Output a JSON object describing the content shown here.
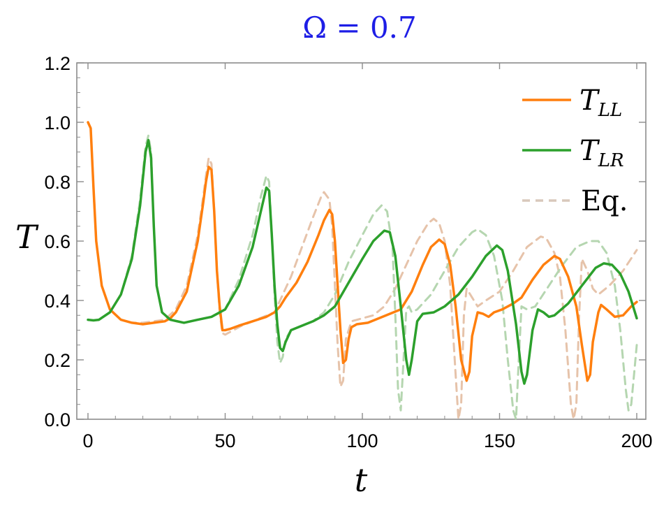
{
  "chart_data": {
    "type": "line",
    "title": "Ω = 0.7",
    "xlabel": "t",
    "ylabel": "T",
    "xlim": [
      0,
      200
    ],
    "ylim": [
      0,
      1.2
    ],
    "x_ticks": [
      "0",
      "50",
      "100",
      "150",
      "200"
    ],
    "y_ticks": [
      "0.0",
      "0.2",
      "0.4",
      "0.6",
      "0.8",
      "1.0",
      "1.2"
    ],
    "grid": false,
    "legend_position": "top-right",
    "series": [
      {
        "name": "T_LL",
        "legend_main": "T",
        "legend_sub": "LL",
        "color": "#ff7f0e",
        "style": "solid",
        "points": [
          [
            0,
            1.0
          ],
          [
            1,
            0.98
          ],
          [
            2,
            0.78
          ],
          [
            3,
            0.6
          ],
          [
            5,
            0.45
          ],
          [
            8,
            0.37
          ],
          [
            12,
            0.335
          ],
          [
            16,
            0.325
          ],
          [
            20,
            0.32
          ],
          [
            24,
            0.325
          ],
          [
            28,
            0.33
          ],
          [
            30,
            0.34
          ],
          [
            32,
            0.36
          ],
          [
            36,
            0.43
          ],
          [
            40,
            0.6
          ],
          [
            42,
            0.73
          ],
          [
            43,
            0.8
          ],
          [
            44,
            0.85
          ],
          [
            45,
            0.84
          ],
          [
            46,
            0.7
          ],
          [
            47,
            0.5
          ],
          [
            48,
            0.38
          ],
          [
            49,
            0.3
          ],
          [
            50,
            0.3
          ],
          [
            52,
            0.305
          ],
          [
            55,
            0.315
          ],
          [
            60,
            0.33
          ],
          [
            65,
            0.345
          ],
          [
            68,
            0.36
          ],
          [
            70,
            0.38
          ],
          [
            72,
            0.41
          ],
          [
            76,
            0.46
          ],
          [
            80,
            0.53
          ],
          [
            84,
            0.62
          ],
          [
            86,
            0.67
          ],
          [
            88,
            0.705
          ],
          [
            89,
            0.69
          ],
          [
            90,
            0.6
          ],
          [
            91,
            0.45
          ],
          [
            92,
            0.3
          ],
          [
            93,
            0.19
          ],
          [
            94,
            0.2
          ],
          [
            95,
            0.27
          ],
          [
            96,
            0.31
          ],
          [
            98,
            0.32
          ],
          [
            102,
            0.325
          ],
          [
            106,
            0.34
          ],
          [
            110,
            0.355
          ],
          [
            114,
            0.37
          ],
          [
            118,
            0.43
          ],
          [
            122,
            0.52
          ],
          [
            125,
            0.58
          ],
          [
            128,
            0.605
          ],
          [
            130,
            0.59
          ],
          [
            132,
            0.52
          ],
          [
            134,
            0.38
          ],
          [
            136,
            0.2
          ],
          [
            138,
            0.13
          ],
          [
            139,
            0.16
          ],
          [
            140,
            0.28
          ],
          [
            142,
            0.36
          ],
          [
            144,
            0.355
          ],
          [
            146,
            0.345
          ],
          [
            148,
            0.36
          ],
          [
            151,
            0.37
          ],
          [
            155,
            0.39
          ],
          [
            158,
            0.41
          ],
          [
            162,
            0.47
          ],
          [
            166,
            0.52
          ],
          [
            170,
            0.55
          ],
          [
            172,
            0.54
          ],
          [
            175,
            0.48
          ],
          [
            178,
            0.38
          ],
          [
            180,
            0.25
          ],
          [
            182,
            0.13
          ],
          [
            183,
            0.15
          ],
          [
            184,
            0.26
          ],
          [
            186,
            0.36
          ],
          [
            187,
            0.385
          ],
          [
            189,
            0.37
          ],
          [
            192,
            0.345
          ],
          [
            195,
            0.35
          ],
          [
            198,
            0.38
          ],
          [
            200,
            0.395
          ]
        ]
      },
      {
        "name": "T_LR",
        "legend_main": "T",
        "legend_sub": "LR",
        "color": "#2ca02c",
        "style": "solid",
        "points": [
          [
            0,
            0.335
          ],
          [
            2,
            0.333
          ],
          [
            4,
            0.335
          ],
          [
            8,
            0.36
          ],
          [
            12,
            0.42
          ],
          [
            16,
            0.54
          ],
          [
            19,
            0.72
          ],
          [
            21,
            0.9
          ],
          [
            22,
            0.94
          ],
          [
            23,
            0.88
          ],
          [
            24,
            0.65
          ],
          [
            25,
            0.45
          ],
          [
            27,
            0.36
          ],
          [
            30,
            0.335
          ],
          [
            35,
            0.325
          ],
          [
            40,
            0.335
          ],
          [
            45,
            0.345
          ],
          [
            50,
            0.37
          ],
          [
            55,
            0.45
          ],
          [
            60,
            0.58
          ],
          [
            63,
            0.7
          ],
          [
            65,
            0.78
          ],
          [
            66,
            0.77
          ],
          [
            67,
            0.62
          ],
          [
            68,
            0.45
          ],
          [
            69,
            0.32
          ],
          [
            70,
            0.24
          ],
          [
            71,
            0.23
          ],
          [
            72,
            0.26
          ],
          [
            74,
            0.3
          ],
          [
            78,
            0.315
          ],
          [
            82,
            0.33
          ],
          [
            86,
            0.35
          ],
          [
            90,
            0.38
          ],
          [
            95,
            0.46
          ],
          [
            100,
            0.54
          ],
          [
            104,
            0.6
          ],
          [
            108,
            0.635
          ],
          [
            110,
            0.63
          ],
          [
            112,
            0.55
          ],
          [
            114,
            0.38
          ],
          [
            116,
            0.2
          ],
          [
            117,
            0.15
          ],
          [
            118,
            0.2
          ],
          [
            120,
            0.33
          ],
          [
            122,
            0.355
          ],
          [
            126,
            0.36
          ],
          [
            130,
            0.38
          ],
          [
            135,
            0.42
          ],
          [
            140,
            0.48
          ],
          [
            145,
            0.55
          ],
          [
            149,
            0.585
          ],
          [
            151,
            0.57
          ],
          [
            153,
            0.5
          ],
          [
            156,
            0.32
          ],
          [
            158,
            0.16
          ],
          [
            159,
            0.12
          ],
          [
            160,
            0.15
          ],
          [
            162,
            0.3
          ],
          [
            164,
            0.37
          ],
          [
            166,
            0.36
          ],
          [
            168,
            0.345
          ],
          [
            170,
            0.35
          ],
          [
            175,
            0.39
          ],
          [
            180,
            0.45
          ],
          [
            185,
            0.51
          ],
          [
            188,
            0.525
          ],
          [
            191,
            0.52
          ],
          [
            194,
            0.49
          ],
          [
            197,
            0.43
          ],
          [
            199,
            0.37
          ],
          [
            200,
            0.34
          ]
        ]
      },
      {
        "name": "Eq. (LL)",
        "color": "#e6c3aa",
        "style": "dashed",
        "points": [
          [
            0,
            1.0
          ],
          [
            1,
            0.98
          ],
          [
            2,
            0.78
          ],
          [
            3,
            0.6
          ],
          [
            5,
            0.45
          ],
          [
            8,
            0.37
          ],
          [
            12,
            0.335
          ],
          [
            16,
            0.325
          ],
          [
            20,
            0.325
          ],
          [
            24,
            0.33
          ],
          [
            28,
            0.335
          ],
          [
            32,
            0.37
          ],
          [
            36,
            0.45
          ],
          [
            40,
            0.62
          ],
          [
            42,
            0.75
          ],
          [
            43,
            0.82
          ],
          [
            44,
            0.88
          ],
          [
            45,
            0.86
          ],
          [
            46,
            0.7
          ],
          [
            47,
            0.5
          ],
          [
            48,
            0.36
          ],
          [
            49,
            0.29
          ],
          [
            50,
            0.285
          ],
          [
            53,
            0.3
          ],
          [
            56,
            0.315
          ],
          [
            60,
            0.33
          ],
          [
            64,
            0.345
          ],
          [
            68,
            0.36
          ],
          [
            70,
            0.4
          ],
          [
            74,
            0.48
          ],
          [
            78,
            0.58
          ],
          [
            82,
            0.68
          ],
          [
            85,
            0.75
          ],
          [
            86,
            0.765
          ],
          [
            88,
            0.74
          ],
          [
            89,
            0.65
          ],
          [
            90,
            0.45
          ],
          [
            91,
            0.25
          ],
          [
            92,
            0.11
          ],
          [
            93,
            0.13
          ],
          [
            94,
            0.27
          ],
          [
            96,
            0.33
          ],
          [
            100,
            0.34
          ],
          [
            104,
            0.35
          ],
          [
            108,
            0.38
          ],
          [
            112,
            0.44
          ],
          [
            116,
            0.52
          ],
          [
            120,
            0.6
          ],
          [
            124,
            0.66
          ],
          [
            126,
            0.675
          ],
          [
            128,
            0.66
          ],
          [
            130,
            0.6
          ],
          [
            132,
            0.45
          ],
          [
            134,
            0.15
          ],
          [
            135,
            0.0
          ],
          [
            136,
            0.05
          ],
          [
            137,
            0.35
          ],
          [
            138,
            0.44
          ],
          [
            140,
            0.41
          ],
          [
            142,
            0.38
          ],
          [
            145,
            0.4
          ],
          [
            150,
            0.43
          ],
          [
            155,
            0.5
          ],
          [
            160,
            0.58
          ],
          [
            165,
            0.615
          ],
          [
            167,
            0.61
          ],
          [
            170,
            0.56
          ],
          [
            172,
            0.48
          ],
          [
            174,
            0.3
          ],
          [
            176,
            0.05
          ],
          [
            177,
            0.0
          ],
          [
            178,
            0.05
          ],
          [
            179,
            0.35
          ],
          [
            180,
            0.54
          ],
          [
            182,
            0.5
          ],
          [
            184,
            0.44
          ],
          [
            186,
            0.42
          ],
          [
            190,
            0.45
          ],
          [
            195,
            0.5
          ],
          [
            200,
            0.57
          ]
        ]
      },
      {
        "name": "Eq. (LR)",
        "legend_main": "Eq.",
        "color": "#b5d6b0",
        "style": "dashed",
        "points": [
          [
            0,
            0.335
          ],
          [
            2,
            0.333
          ],
          [
            4,
            0.335
          ],
          [
            8,
            0.36
          ],
          [
            12,
            0.42
          ],
          [
            16,
            0.55
          ],
          [
            19,
            0.74
          ],
          [
            21,
            0.92
          ],
          [
            22,
            0.955
          ],
          [
            23,
            0.9
          ],
          [
            24,
            0.65
          ],
          [
            25,
            0.45
          ],
          [
            27,
            0.36
          ],
          [
            30,
            0.335
          ],
          [
            35,
            0.325
          ],
          [
            40,
            0.335
          ],
          [
            45,
            0.345
          ],
          [
            50,
            0.37
          ],
          [
            55,
            0.47
          ],
          [
            60,
            0.62
          ],
          [
            63,
            0.75
          ],
          [
            65,
            0.82
          ],
          [
            66,
            0.8
          ],
          [
            67,
            0.62
          ],
          [
            68,
            0.42
          ],
          [
            69,
            0.26
          ],
          [
            70,
            0.19
          ],
          [
            71,
            0.21
          ],
          [
            72,
            0.27
          ],
          [
            74,
            0.3
          ],
          [
            78,
            0.315
          ],
          [
            82,
            0.33
          ],
          [
            86,
            0.36
          ],
          [
            90,
            0.42
          ],
          [
            95,
            0.53
          ],
          [
            100,
            0.62
          ],
          [
            104,
            0.69
          ],
          [
            107,
            0.72
          ],
          [
            109,
            0.7
          ],
          [
            111,
            0.58
          ],
          [
            112,
            0.35
          ],
          [
            113,
            0.1
          ],
          [
            114,
            0.03
          ],
          [
            115,
            0.2
          ],
          [
            116,
            0.37
          ],
          [
            117,
            0.38
          ],
          [
            118,
            0.36
          ],
          [
            120,
            0.37
          ],
          [
            125,
            0.42
          ],
          [
            130,
            0.5
          ],
          [
            135,
            0.58
          ],
          [
            140,
            0.63
          ],
          [
            142,
            0.64
          ],
          [
            145,
            0.62
          ],
          [
            148,
            0.55
          ],
          [
            151,
            0.4
          ],
          [
            153,
            0.2
          ],
          [
            155,
            0.03
          ],
          [
            156,
            0.0
          ],
          [
            157,
            0.2
          ],
          [
            158,
            0.38
          ],
          [
            160,
            0.37
          ],
          [
            163,
            0.38
          ],
          [
            168,
            0.45
          ],
          [
            173,
            0.52
          ],
          [
            178,
            0.58
          ],
          [
            183,
            0.6
          ],
          [
            186,
            0.6
          ],
          [
            189,
            0.56
          ],
          [
            192,
            0.45
          ],
          [
            194,
            0.3
          ],
          [
            196,
            0.1
          ],
          [
            197,
            0.03
          ],
          [
            198,
            0.05
          ],
          [
            199,
            0.15
          ],
          [
            200,
            0.25
          ]
        ]
      }
    ]
  }
}
